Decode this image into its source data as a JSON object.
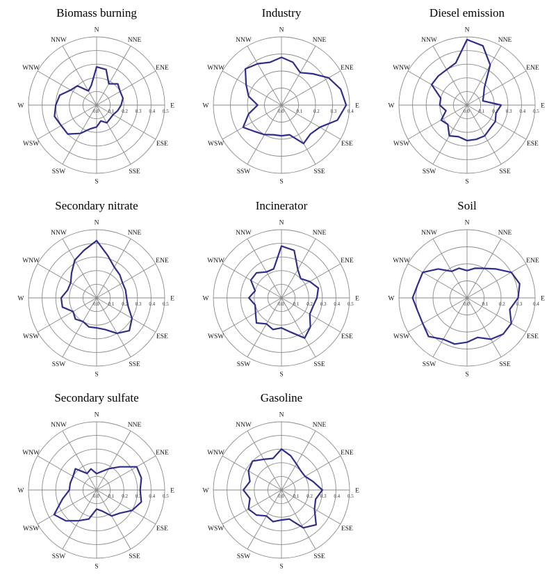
{
  "colors": {
    "series": "#2e2e8a",
    "grid": "#8a8a8a"
  },
  "directions": [
    "N",
    "NNE",
    "ENE",
    "E",
    "ESE",
    "SSE",
    "S",
    "SSW",
    "WSW",
    "W",
    "WNW",
    "NNW"
  ],
  "chart_data": [
    {
      "type": "radar",
      "title": "Biomass burning",
      "rlim": [
        0,
        0.5
      ],
      "tick_labels": [
        "0.0",
        "0.1",
        "0.2",
        "0.3",
        "0.4",
        "0.5"
      ],
      "theta_deg": [
        0,
        15,
        30,
        45,
        60,
        75,
        90,
        105,
        120,
        135,
        150,
        165,
        180,
        195,
        210,
        225,
        240,
        255,
        270,
        285,
        300,
        315,
        330,
        345
      ],
      "series": [
        {
          "values": [
            0.28,
            0.27,
            0.18,
            0.22,
            0.2,
            0.2,
            0.18,
            0.16,
            0.14,
            0.14,
            0.15,
            0.12,
            0.16,
            0.18,
            0.24,
            0.3,
            0.3,
            0.32,
            0.3,
            0.28,
            0.22,
            0.2,
            0.12,
            0.15
          ]
        }
      ]
    },
    {
      "type": "radar",
      "title": "Industry",
      "rlim": [
        0,
        0.4
      ],
      "tick_labels": [
        "0.0",
        "0.1",
        "0.2",
        "0.3",
        "0.4"
      ],
      "theta_deg": [
        0,
        15,
        30,
        45,
        60,
        75,
        90,
        105,
        120,
        135,
        150,
        165,
        180,
        195,
        210,
        225,
        240,
        255,
        270,
        285,
        300,
        315,
        330,
        345
      ],
      "series": [
        {
          "values": [
            0.28,
            0.26,
            0.22,
            0.26,
            0.32,
            0.36,
            0.38,
            0.34,
            0.26,
            0.24,
            0.26,
            0.18,
            0.18,
            0.18,
            0.2,
            0.22,
            0.26,
            0.2,
            0.14,
            0.2,
            0.24,
            0.3,
            0.28,
            0.26
          ]
        }
      ]
    },
    {
      "type": "radar",
      "title": "Diesel emission",
      "rlim": [
        0,
        0.5
      ],
      "tick_labels": [
        "0.0",
        "0.1",
        "0.2",
        "0.3",
        "0.4",
        "0.5"
      ],
      "theta_deg": [
        0,
        15,
        30,
        45,
        60,
        75,
        90,
        105,
        120,
        135,
        150,
        165,
        180,
        195,
        210,
        225,
        240,
        255,
        270,
        285,
        300,
        315,
        330,
        345
      ],
      "series": [
        {
          "values": [
            0.48,
            0.45,
            0.34,
            0.18,
            0.14,
            0.12,
            0.25,
            0.22,
            0.24,
            0.24,
            0.26,
            0.26,
            0.26,
            0.24,
            0.26,
            0.2,
            0.22,
            0.16,
            0.2,
            0.2,
            0.3,
            0.3,
            0.3,
            0.32
          ]
        }
      ]
    },
    {
      "type": "radar",
      "title": "Secondary nitrate",
      "rlim": [
        0,
        0.5
      ],
      "tick_labels": [
        "0.0",
        "0.1",
        "0.2",
        "0.3",
        "0.4",
        "0.5"
      ],
      "theta_deg": [
        0,
        15,
        30,
        45,
        60,
        75,
        90,
        105,
        120,
        135,
        150,
        165,
        180,
        195,
        210,
        225,
        240,
        255,
        270,
        285,
        300,
        315,
        330,
        345
      ],
      "series": [
        {
          "values": [
            0.42,
            0.32,
            0.26,
            0.24,
            0.22,
            0.22,
            0.22,
            0.24,
            0.3,
            0.34,
            0.3,
            0.24,
            0.22,
            0.22,
            0.2,
            0.22,
            0.2,
            0.26,
            0.26,
            0.22,
            0.22,
            0.26,
            0.32,
            0.36
          ]
        }
      ]
    },
    {
      "type": "radar",
      "title": "Incinerator",
      "rlim": [
        0,
        0.5
      ],
      "tick_labels": [
        "0.0",
        "0.1",
        "0.2",
        "0.3",
        "0.4",
        "0.5"
      ],
      "theta_deg": [
        0,
        15,
        30,
        45,
        60,
        75,
        90,
        105,
        120,
        135,
        150,
        165,
        180,
        195,
        210,
        225,
        240,
        255,
        270,
        285,
        300,
        315,
        330,
        345
      ],
      "series": [
        {
          "values": [
            0.38,
            0.36,
            0.24,
            0.2,
            0.24,
            0.28,
            0.26,
            0.24,
            0.24,
            0.3,
            0.34,
            0.26,
            0.22,
            0.24,
            0.22,
            0.26,
            0.22,
            0.2,
            0.24,
            0.2,
            0.26,
            0.26,
            0.22,
            0.22
          ]
        }
      ]
    },
    {
      "type": "radar",
      "title": "Soil",
      "rlim": [
        0,
        0.4
      ],
      "tick_labels": [
        "0.0",
        "0.1",
        "0.2",
        "0.3",
        "0.4"
      ],
      "theta_deg": [
        0,
        15,
        30,
        45,
        60,
        75,
        90,
        105,
        120,
        135,
        150,
        165,
        180,
        195,
        210,
        225,
        240,
        255,
        270,
        285,
        300,
        315,
        330,
        345
      ],
      "series": [
        {
          "values": [
            0.16,
            0.18,
            0.2,
            0.24,
            0.3,
            0.32,
            0.3,
            0.26,
            0.3,
            0.3,
            0.28,
            0.24,
            0.26,
            0.28,
            0.28,
            0.32,
            0.3,
            0.3,
            0.32,
            0.3,
            0.3,
            0.24,
            0.18,
            0.18
          ]
        }
      ]
    },
    {
      "type": "radar",
      "title": "Secondary sulfate",
      "rlim": [
        0,
        0.5
      ],
      "tick_labels": [
        "0.0",
        "0.1",
        "0.2",
        "0.3",
        "0.4",
        "0.5"
      ],
      "theta_deg": [
        0,
        15,
        30,
        45,
        60,
        75,
        90,
        105,
        120,
        135,
        150,
        165,
        180,
        195,
        210,
        225,
        240,
        255,
        270,
        285,
        300,
        315,
        330,
        345
      ],
      "series": [
        {
          "values": [
            0.12,
            0.14,
            0.18,
            0.24,
            0.34,
            0.34,
            0.32,
            0.34,
            0.3,
            0.24,
            0.22,
            0.16,
            0.14,
            0.22,
            0.26,
            0.32,
            0.36,
            0.26,
            0.2,
            0.2,
            0.2,
            0.22,
            0.14,
            0.16
          ]
        }
      ]
    },
    {
      "type": "radar",
      "title": "Gasoline",
      "rlim": [
        0,
        0.5
      ],
      "tick_labels": [
        "0.0",
        "0.1",
        "0.2",
        "0.3",
        "0.4",
        "0.5"
      ],
      "theta_deg": [
        0,
        15,
        30,
        45,
        60,
        75,
        90,
        105,
        120,
        135,
        150,
        165,
        180,
        195,
        210,
        225,
        240,
        255,
        270,
        285,
        300,
        315,
        330,
        345
      ],
      "series": [
        {
          "values": [
            0.3,
            0.26,
            0.22,
            0.2,
            0.2,
            0.24,
            0.3,
            0.26,
            0.28,
            0.36,
            0.32,
            0.22,
            0.22,
            0.24,
            0.22,
            0.26,
            0.28,
            0.24,
            0.28,
            0.24,
            0.28,
            0.3,
            0.26,
            0.24
          ]
        }
      ]
    }
  ]
}
